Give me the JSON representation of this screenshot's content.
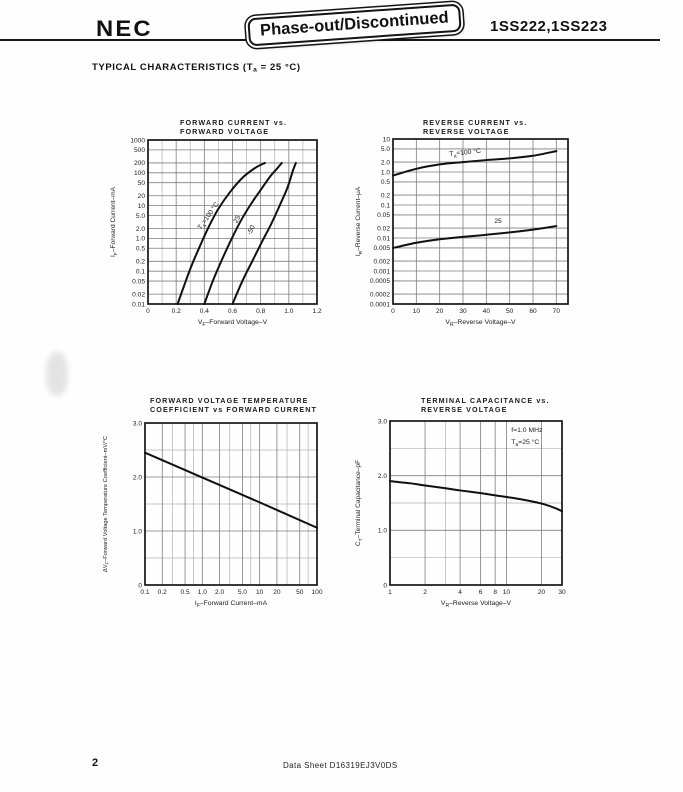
{
  "page": {
    "header": {
      "brand": "NEC",
      "stamp": "Phase-out/Discontinued",
      "part_numbers": "1SS222,1SS223"
    },
    "section_title_parts": [
      {
        "t": "TYPICAL CHARACTERISTICS (T"
      },
      {
        "t": "a",
        "sub": true
      },
      {
        "t": " = 25 °C)"
      }
    ],
    "footer": {
      "page_number": "2",
      "doc_label": "Data Sheet D16319EJ3V0DS"
    }
  },
  "chart_data": [
    {
      "type": "line",
      "title_lines": [
        "FORWARD CURRENT vs.",
        "FORWARD VOLTAGE"
      ],
      "xlabel_parts": [
        {
          "t": "V"
        },
        {
          "t": "F",
          "sub": true
        },
        {
          "t": "–Forward Voltage–V"
        }
      ],
      "ylabel_parts": [
        {
          "t": "I"
        },
        {
          "t": "F",
          "sub": true
        },
        {
          "t": "–Forward Current–mA"
        }
      ],
      "x_axis": {
        "scale": "linear",
        "min": 0,
        "max": 1.2,
        "ticks": [
          {
            "v": 0,
            "label": "0"
          },
          {
            "v": 0.2,
            "label": "0.2"
          },
          {
            "v": 0.4,
            "label": "0.4"
          },
          {
            "v": 0.6,
            "label": "0.6"
          },
          {
            "v": 0.8,
            "label": "0.8"
          },
          {
            "v": 1.0,
            "label": "1.0"
          },
          {
            "v": 1.2,
            "label": "1.2"
          }
        ],
        "minor": [
          0.1,
          0.3,
          0.5,
          0.7,
          0.9,
          1.1
        ]
      },
      "y_axis": {
        "scale": "log",
        "min": 0.01,
        "max": 1000,
        "ticks": [
          {
            "v": 1000,
            "label": "1000"
          },
          {
            "v": 500,
            "label": "500"
          },
          {
            "v": 200,
            "label": "200"
          },
          {
            "v": 100,
            "label": "100"
          },
          {
            "v": 50,
            "label": "50"
          },
          {
            "v": 20,
            "label": "20"
          },
          {
            "v": 10,
            "label": "10"
          },
          {
            "v": 5,
            "label": "5.0"
          },
          {
            "v": 2,
            "label": "2.0"
          },
          {
            "v": 1,
            "label": "1.0"
          },
          {
            "v": 0.5,
            "label": "0.5"
          },
          {
            "v": 0.2,
            "label": "0.2"
          },
          {
            "v": 0.1,
            "label": "0.1"
          },
          {
            "v": 0.05,
            "label": "0.05"
          },
          {
            "v": 0.02,
            "label": "0.02"
          },
          {
            "v": 0.01,
            "label": "0.01"
          }
        ],
        "minor": []
      },
      "series": [
        {
          "name": "Ta=100 °C",
          "points": [
            [
              0.21,
              0.01
            ],
            [
              0.26,
              0.04
            ],
            [
              0.31,
              0.15
            ],
            [
              0.37,
              0.6
            ],
            [
              0.43,
              2.2
            ],
            [
              0.5,
              8
            ],
            [
              0.58,
              25
            ],
            [
              0.67,
              70
            ],
            [
              0.76,
              140
            ],
            [
              0.83,
              200
            ]
          ]
        },
        {
          "name": "25",
          "points": [
            [
              0.4,
              0.01
            ],
            [
              0.46,
              0.05
            ],
            [
              0.52,
              0.2
            ],
            [
              0.59,
              0.9
            ],
            [
              0.66,
              3.5
            ],
            [
              0.73,
              11
            ],
            [
              0.8,
              30
            ],
            [
              0.87,
              80
            ],
            [
              0.92,
              140
            ],
            [
              0.95,
              200
            ]
          ]
        },
        {
          "name": "-50",
          "points": [
            [
              0.6,
              0.01
            ],
            [
              0.67,
              0.05
            ],
            [
              0.74,
              0.2
            ],
            [
              0.81,
              0.8
            ],
            [
              0.87,
              2.5
            ],
            [
              0.93,
              9
            ],
            [
              0.99,
              35
            ],
            [
              1.03,
              120
            ],
            [
              1.05,
              200
            ]
          ]
        }
      ],
      "annotations": [
        {
          "parts": [
            {
              "t": "T"
            },
            {
              "t": "a",
              "sub": true
            },
            {
              "t": "=100 °C"
            }
          ],
          "x": 0.44,
          "y": 4.5,
          "rot": -55
        },
        {
          "parts": [
            {
              "t": "25"
            }
          ],
          "x": 0.645,
          "y": 3.6,
          "rot": -62
        },
        {
          "parts": [
            {
              "t": "-50"
            }
          ],
          "x": 0.745,
          "y": 1.7,
          "rot": -65
        }
      ]
    },
    {
      "type": "line",
      "title_lines": [
        "REVERSE CURRENT vs.",
        "REVERSE VOLTAGE"
      ],
      "xlabel_parts": [
        {
          "t": "V"
        },
        {
          "t": "R",
          "sub": true
        },
        {
          "t": "–Reverse Voltage–V"
        }
      ],
      "ylabel_parts": [
        {
          "t": "I"
        },
        {
          "t": "R",
          "sub": true
        },
        {
          "t": "–Reverse Current–μA"
        }
      ],
      "x_axis": {
        "scale": "linear",
        "min": 0,
        "max": 75,
        "ticks": [
          {
            "v": 0,
            "label": "0"
          },
          {
            "v": 10,
            "label": "10"
          },
          {
            "v": 20,
            "label": "20"
          },
          {
            "v": 30,
            "label": "30"
          },
          {
            "v": 40,
            "label": "40"
          },
          {
            "v": 50,
            "label": "50"
          },
          {
            "v": 60,
            "label": "60"
          },
          {
            "v": 70,
            "label": "70"
          }
        ],
        "minor": []
      },
      "y_axis": {
        "scale": "log",
        "min": 0.0001,
        "max": 10,
        "ticks": [
          {
            "v": 10,
            "label": "10"
          },
          {
            "v": 5,
            "label": "5.0"
          },
          {
            "v": 2,
            "label": "2.0"
          },
          {
            "v": 1,
            "label": "1.0"
          },
          {
            "v": 0.5,
            "label": "0.5"
          },
          {
            "v": 0.2,
            "label": "0.2"
          },
          {
            "v": 0.1,
            "label": "0.1"
          },
          {
            "v": 0.05,
            "label": "0.05"
          },
          {
            "v": 0.02,
            "label": "0.02"
          },
          {
            "v": 0.01,
            "label": "0.01"
          },
          {
            "v": 0.005,
            "label": "0.005"
          },
          {
            "v": 0.002,
            "label": "0.002"
          },
          {
            "v": 0.001,
            "label": "0.001"
          },
          {
            "v": 0.0005,
            "label": "0.0005"
          },
          {
            "v": 0.0002,
            "label": "0.0002"
          },
          {
            "v": 0.0001,
            "label": "0.0001"
          }
        ],
        "minor": []
      },
      "series": [
        {
          "name": "Ta=100 °C",
          "points": [
            [
              0,
              0.78
            ],
            [
              10,
              1.25
            ],
            [
              20,
              1.7
            ],
            [
              30,
              2.0
            ],
            [
              40,
              2.3
            ],
            [
              50,
              2.6
            ],
            [
              60,
              3.1
            ],
            [
              70,
              4.3
            ]
          ]
        },
        {
          "name": "25",
          "points": [
            [
              0,
              0.005
            ],
            [
              10,
              0.0072
            ],
            [
              20,
              0.0092
            ],
            [
              30,
              0.0108
            ],
            [
              40,
              0.0125
            ],
            [
              50,
              0.0148
            ],
            [
              60,
              0.018
            ],
            [
              70,
              0.023
            ]
          ]
        }
      ],
      "annotations": [
        {
          "parts": [
            {
              "t": "T"
            },
            {
              "t": "a",
              "sub": true
            },
            {
              "t": "=100 °C"
            }
          ],
          "x": 31,
          "y": 3.4,
          "rot": -6
        },
        {
          "parts": [
            {
              "t": "25"
            }
          ],
          "x": 45,
          "y": 0.028,
          "rot": 0
        }
      ]
    },
    {
      "type": "line",
      "title_lines": [
        "FORWARD VOLTAGE TEMPERATURE",
        "COEFFICIENT vs FORWARD CURRENT"
      ],
      "xlabel_parts": [
        {
          "t": "I"
        },
        {
          "t": "F",
          "sub": true
        },
        {
          "t": "–Forward Current–mA"
        }
      ],
      "ylabel_parts": [
        {
          "t": "ΔV"
        },
        {
          "t": "F",
          "sub": true
        },
        {
          "t": "–Forward Voltage Temperature Coefficient–mV/°C"
        }
      ],
      "x_axis": {
        "scale": "log",
        "min": 0.1,
        "max": 100,
        "ticks": [
          {
            "v": 0.1,
            "label": "0.1"
          },
          {
            "v": 0.2,
            "label": "0.2"
          },
          {
            "v": 0.5,
            "label": "0.5"
          },
          {
            "v": 1,
            "label": "1.0"
          },
          {
            "v": 2,
            "label": "2.0"
          },
          {
            "v": 5,
            "label": "5.0"
          },
          {
            "v": 10,
            "label": "10"
          },
          {
            "v": 20,
            "label": "20"
          },
          {
            "v": 50,
            "label": "50"
          },
          {
            "v": 100,
            "label": "100"
          }
        ],
        "minor": [
          0.3,
          0.7,
          3,
          7,
          30,
          70
        ]
      },
      "y_axis": {
        "scale": "linear",
        "min": 0,
        "max": 3,
        "ticks": [
          {
            "v": 3,
            "label": "3.0"
          },
          {
            "v": 2,
            "label": "2.0"
          },
          {
            "v": 1,
            "label": "1.0"
          },
          {
            "v": 0,
            "label": "0"
          }
        ],
        "minor": [
          0.5,
          1.5,
          2.5
        ]
      },
      "series": [
        {
          "name": "temperature coefficient",
          "points": [
            [
              0.1,
              2.45
            ],
            [
              1,
              1.99
            ],
            [
              10,
              1.53
            ],
            [
              100,
              1.06
            ]
          ]
        }
      ],
      "annotations": []
    },
    {
      "type": "line",
      "title_lines": [
        "TERMINAL CAPACITANCE vs.",
        "REVERSE VOLTAGE"
      ],
      "xlabel_parts": [
        {
          "t": "V"
        },
        {
          "t": "R",
          "sub": true
        },
        {
          "t": "–Reverse Voltage–V"
        }
      ],
      "ylabel_parts": [
        {
          "t": "C"
        },
        {
          "t": "T",
          "sub": true
        },
        {
          "t": "–Terminal Capacitance–pF"
        }
      ],
      "x_axis": {
        "scale": "log",
        "min": 1,
        "max": 30,
        "ticks": [
          {
            "v": 1,
            "label": "1"
          },
          {
            "v": 2,
            "label": "2"
          },
          {
            "v": 4,
            "label": "4"
          },
          {
            "v": 6,
            "label": "6"
          },
          {
            "v": 8,
            "label": "8"
          },
          {
            "v": 10,
            "label": "10"
          },
          {
            "v": 20,
            "label": "20"
          },
          {
            "v": 30,
            "label": "30"
          }
        ],
        "minor": [
          3
        ]
      },
      "y_axis": {
        "scale": "linear",
        "min": 0,
        "max": 3,
        "ticks": [
          {
            "v": 3,
            "label": "3.0"
          },
          {
            "v": 2,
            "label": "2.0"
          },
          {
            "v": 1,
            "label": "1.0"
          },
          {
            "v": 0,
            "label": "0"
          }
        ],
        "minor": [
          0.5,
          1.5,
          2.5
        ]
      },
      "series": [
        {
          "name": "terminal capacitance",
          "points": [
            [
              1,
              1.9
            ],
            [
              1.5,
              1.86
            ],
            [
              2,
              1.82
            ],
            [
              3,
              1.77
            ],
            [
              4,
              1.73
            ],
            [
              6,
              1.68
            ],
            [
              8,
              1.64
            ],
            [
              10,
              1.61
            ],
            [
              14,
              1.56
            ],
            [
              20,
              1.49
            ],
            [
              26,
              1.41
            ],
            [
              30,
              1.35
            ]
          ]
        }
      ],
      "annotations": [
        {
          "parts": [
            {
              "t": "f=1.0 MHz"
            }
          ],
          "x": 11,
          "y": 2.8,
          "rot": 0,
          "anchor": "start"
        },
        {
          "parts": [
            {
              "t": "T"
            },
            {
              "t": "a",
              "sub": true
            },
            {
              "t": "=25 °C"
            }
          ],
          "x": 11,
          "y": 2.58,
          "rot": 0,
          "anchor": "start"
        }
      ]
    }
  ]
}
